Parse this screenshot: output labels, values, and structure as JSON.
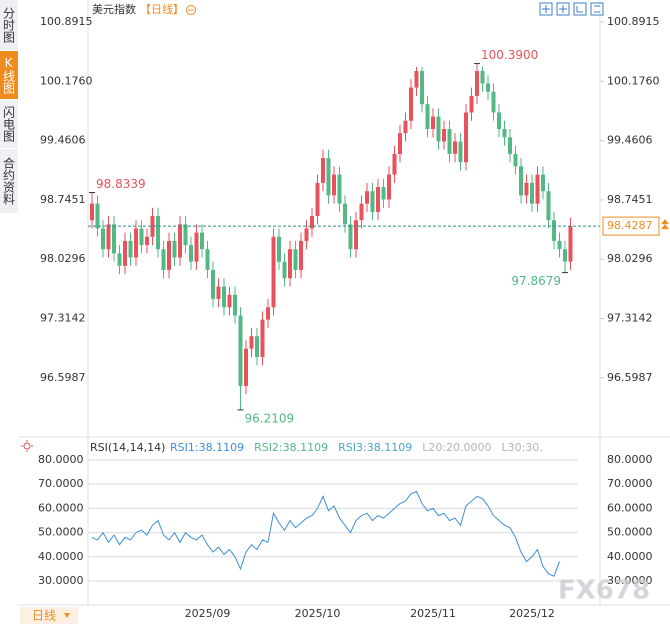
{
  "sidebar_tabs": [
    "分时图",
    "K线图",
    "闪电图",
    "合约资料"
  ],
  "bottom_tab": "日线",
  "watermark": "FX678",
  "chart_data": [
    {
      "type": "candlestick",
      "title": "美元指数",
      "period": "【日线】",
      "categories": [
        null,
        null,
        null,
        null,
        null,
        null,
        null,
        null,
        null,
        null,
        null,
        null,
        null,
        null,
        null,
        null,
        null,
        null,
        null,
        null,
        null,
        "2025/09",
        null,
        null,
        null,
        null,
        null,
        null,
        null,
        null,
        null,
        null,
        null,
        null,
        null,
        null,
        null,
        null,
        null,
        null,
        null,
        "2025/10",
        null,
        null,
        null,
        null,
        null,
        null,
        null,
        null,
        null,
        null,
        null,
        null,
        null,
        null,
        null,
        null,
        null,
        null,
        null,
        null,
        "2025/11",
        null,
        null,
        null,
        null,
        null,
        null,
        null,
        null,
        null,
        null,
        null,
        null,
        null,
        null,
        null,
        null,
        null,
        "2025/12",
        null,
        null,
        null,
        null,
        null,
        null,
        null
      ],
      "open": [
        98.5,
        98.7,
        98.4,
        98.15,
        98.45,
        98.1,
        97.95,
        98.25,
        98.05,
        98.4,
        98.2,
        98.3,
        98.55,
        98.15,
        97.9,
        98.25,
        98.05,
        98.45,
        98.2,
        98.0,
        98.35,
        98.15,
        97.9,
        97.55,
        97.7,
        97.45,
        97.6,
        97.35,
        96.5,
        96.95,
        97.1,
        96.85,
        97.3,
        97.45,
        98.3,
        98.0,
        97.8,
        98.15,
        97.9,
        98.25,
        98.4,
        98.55,
        98.95,
        99.25,
        98.8,
        99.05,
        98.7,
        98.45,
        98.15,
        98.5,
        98.7,
        98.85,
        98.6,
        98.9,
        98.75,
        99.05,
        99.3,
        99.55,
        99.7,
        100.1,
        100.3,
        99.9,
        99.6,
        99.75,
        99.45,
        99.6,
        99.3,
        99.45,
        99.2,
        99.8,
        100.0,
        100.3,
        100.15,
        100.05,
        99.8,
        99.6,
        99.5,
        99.3,
        99.15,
        98.8,
        98.95,
        98.7,
        99.05,
        98.85,
        98.5,
        98.25,
        98.15,
        98.0
      ],
      "close": [
        98.7,
        98.4,
        98.15,
        98.45,
        98.1,
        97.95,
        98.25,
        98.05,
        98.4,
        98.2,
        98.3,
        98.55,
        98.15,
        97.9,
        98.25,
        98.05,
        98.45,
        98.2,
        98.0,
        98.35,
        98.15,
        97.9,
        97.55,
        97.7,
        97.45,
        97.6,
        97.35,
        96.5,
        96.95,
        97.1,
        96.85,
        97.3,
        97.45,
        98.3,
        98.0,
        97.8,
        98.15,
        97.9,
        98.25,
        98.4,
        98.55,
        98.95,
        99.25,
        98.8,
        99.05,
        98.7,
        98.45,
        98.15,
        98.5,
        98.7,
        98.85,
        98.6,
        98.9,
        98.75,
        99.05,
        99.3,
        99.55,
        99.7,
        100.1,
        100.3,
        99.9,
        99.6,
        99.75,
        99.45,
        99.6,
        99.3,
        99.45,
        99.2,
        99.8,
        100.0,
        100.3,
        100.15,
        100.05,
        99.8,
        99.6,
        99.5,
        99.3,
        99.15,
        98.8,
        98.95,
        98.7,
        99.05,
        98.85,
        98.5,
        98.25,
        98.15,
        98.0,
        98.4287
      ],
      "high": [
        98.8339,
        98.8,
        98.5,
        98.55,
        98.55,
        98.2,
        98.35,
        98.35,
        98.5,
        98.5,
        98.4,
        98.65,
        98.65,
        98.25,
        98.35,
        98.35,
        98.55,
        98.55,
        98.3,
        98.45,
        98.45,
        98.25,
        98.0,
        97.8,
        97.8,
        97.7,
        97.7,
        97.45,
        97.05,
        97.2,
        97.2,
        97.4,
        97.55,
        98.4,
        98.4,
        98.1,
        98.25,
        98.25,
        98.35,
        98.5,
        98.65,
        99.05,
        99.35,
        99.35,
        99.15,
        99.15,
        98.8,
        98.55,
        98.6,
        98.8,
        98.95,
        98.95,
        99.0,
        99.0,
        99.15,
        99.4,
        99.65,
        99.8,
        100.2,
        100.35,
        100.35,
        100.0,
        99.85,
        99.85,
        99.7,
        99.7,
        99.55,
        99.55,
        99.9,
        100.1,
        100.39,
        100.35,
        100.25,
        100.15,
        99.9,
        99.7,
        99.6,
        99.4,
        99.25,
        99.05,
        99.05,
        99.15,
        99.15,
        98.95,
        98.6,
        98.35,
        98.25,
        98.53
      ],
      "low": [
        98.4,
        98.3,
        98.05,
        98.05,
        98.0,
        97.85,
        97.85,
        97.95,
        97.95,
        98.1,
        98.1,
        98.2,
        98.05,
        97.8,
        97.8,
        97.95,
        97.95,
        98.1,
        97.9,
        97.9,
        98.05,
        97.8,
        97.45,
        97.45,
        97.35,
        97.35,
        97.25,
        96.2109,
        96.4,
        96.85,
        96.75,
        96.75,
        97.2,
        97.35,
        97.9,
        97.7,
        97.7,
        97.8,
        97.8,
        98.15,
        98.3,
        98.45,
        98.85,
        98.7,
        98.7,
        98.6,
        98.35,
        98.05,
        98.05,
        98.4,
        98.6,
        98.5,
        98.5,
        98.65,
        98.65,
        98.95,
        99.2,
        99.45,
        99.6,
        100.0,
        99.8,
        99.5,
        99.5,
        99.35,
        99.35,
        99.2,
        99.2,
        99.1,
        99.1,
        99.7,
        99.9,
        100.05,
        99.95,
        99.7,
        99.5,
        99.4,
        99.2,
        99.05,
        98.7,
        98.7,
        98.6,
        98.6,
        98.75,
        98.4,
        98.15,
        98.05,
        97.8679,
        97.9
      ],
      "up_color": "#e8525c",
      "down_color": "#52b985",
      "annotations": [
        {
          "value": 100.39,
          "label": "100.3900"
        },
        {
          "value": 96.2109,
          "label": "96.2109"
        },
        {
          "value": 98.8339,
          "label": "98.8339"
        },
        {
          "value": 97.8679,
          "label": "97.8679"
        }
      ],
      "last_price": 98.4287,
      "last_price_color": "#f08c1e",
      "ylim": [
        95.9687,
        101.0966
      ],
      "yticks": [
        96.5987,
        97.3142,
        98.0296,
        98.7451,
        99.4606,
        {
          "value": 100.176,
          "label": "100.1760"
        },
        100.8915
      ]
    },
    {
      "type": "line",
      "title": "RSI(14,14,14)",
      "legend": [
        {
          "label": "RSI1:38.1109",
          "color": "#3d8fd8"
        },
        {
          "label": "RSI2:38.1109",
          "color": "#52b985"
        },
        {
          "label": "RSI3:38.1109",
          "color": "#4aa3c8"
        },
        {
          "label": "L20:20.0000",
          "color": "#b0b4ba"
        },
        {
          "label": "L30:30.",
          "color": "#b0b4ba"
        }
      ],
      "color": "#3d8fd8",
      "values": [
        48,
        47,
        50,
        46,
        49,
        45,
        48,
        47,
        50,
        51,
        49,
        53,
        55,
        49,
        47,
        50,
        46,
        50,
        48,
        47,
        49,
        45,
        42,
        44,
        41,
        43,
        40,
        35,
        42,
        45,
        43,
        47,
        46,
        58,
        54,
        51,
        55,
        52,
        54,
        56,
        57,
        60,
        65,
        59,
        61,
        56,
        53,
        50,
        55,
        57,
        58,
        55,
        57,
        56,
        58,
        60,
        62,
        63,
        66,
        67,
        62,
        59,
        60,
        57,
        58,
        55,
        56,
        53,
        61,
        63,
        65,
        64,
        61,
        57,
        55,
        53,
        52,
        48,
        42,
        38,
        40,
        43,
        36,
        33,
        32,
        38.1109
      ],
      "ylim": [
        20.1,
        84.1
      ],
      "yticks": [
        {
          "value": 30,
          "label": "30.0000"
        },
        {
          "value": 40,
          "label": "40.0000"
        },
        {
          "value": 50,
          "label": "50.0000"
        },
        {
          "value": 60,
          "label": "60.0000"
        },
        {
          "value": 70,
          "label": "70.0000"
        },
        {
          "value": 80,
          "label": "80.0000"
        }
      ]
    }
  ]
}
